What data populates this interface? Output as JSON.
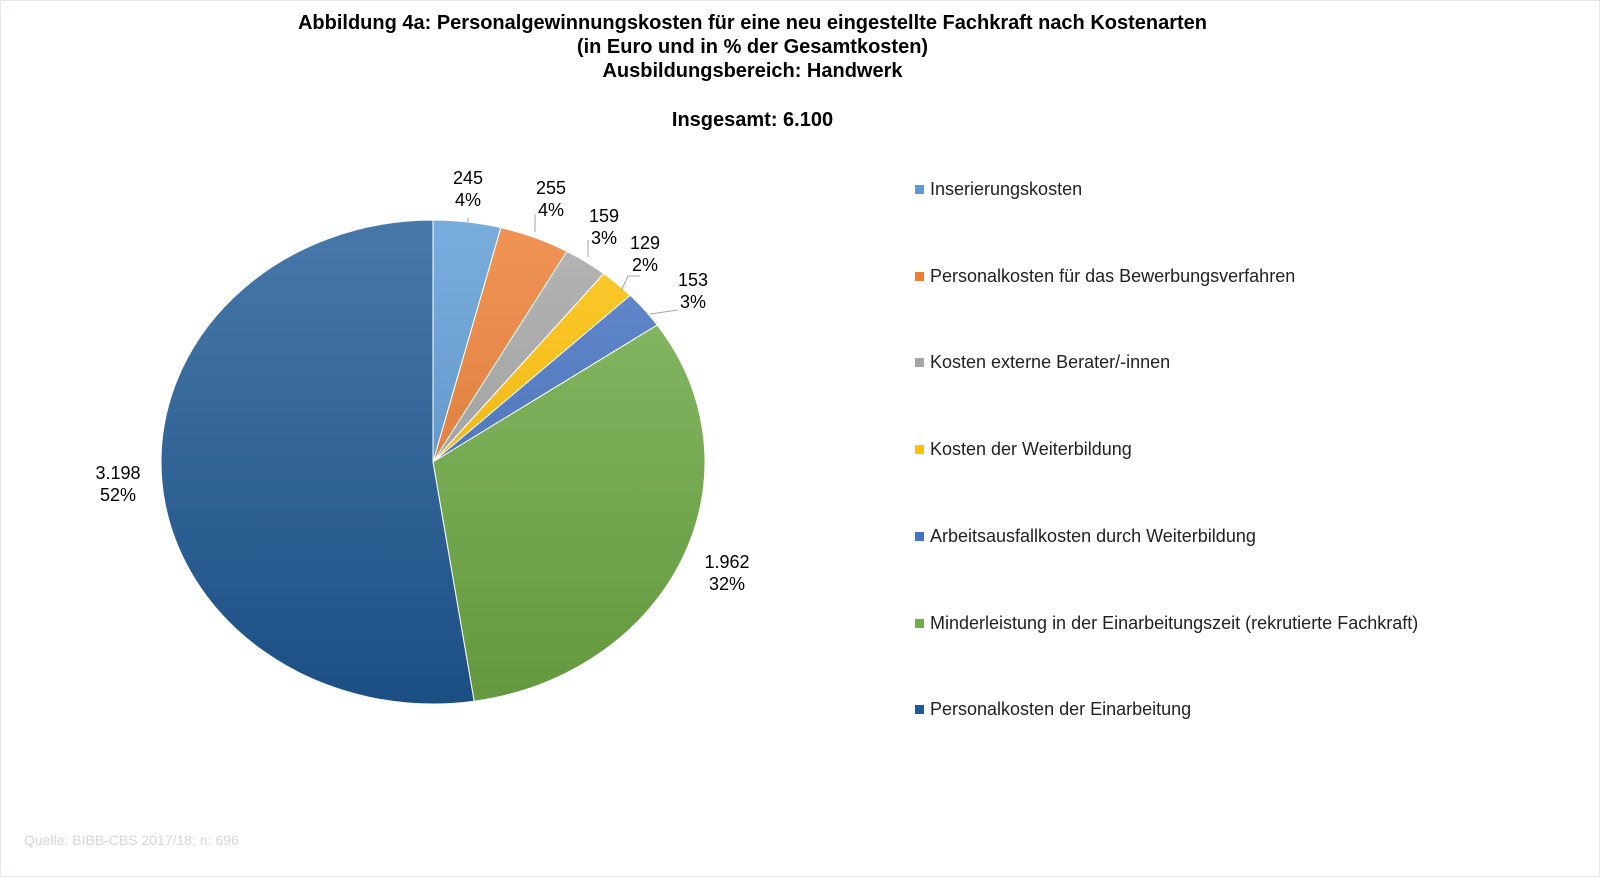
{
  "chart_data": {
    "type": "pie",
    "title": [
      "Abbildung 4a: Personalgewinnungskosten für eine neu eingestellte Fachkraft nach Kostenarten",
      "(in Euro und in % der Gesamtkosten)",
      "Ausbildungsbereich: Handwerk"
    ],
    "subtitle": "Insgesamt: 6.100",
    "legend_position": "right",
    "slices": [
      {
        "name": "Inserierungskosten",
        "value": 245,
        "value_label": "245",
        "percent_label": "4%",
        "color": "#5b9bd5"
      },
      {
        "name": "Personalkosten für das Bewerbungsverfahren",
        "value": 255,
        "value_label": "255",
        "percent_label": "4%",
        "color": "#ed7d31"
      },
      {
        "name": "Kosten externe Berater/-innen",
        "value": 159,
        "value_label": "159",
        "percent_label": "3%",
        "color": "#a5a5a5"
      },
      {
        "name": "Kosten der Weiterbildung",
        "value": 129,
        "value_label": "129",
        "percent_label": "2%",
        "color": "#ffc000"
      },
      {
        "name": "Arbeitsausfallkosten durch Weiterbildung",
        "value": 153,
        "value_label": "153",
        "percent_label": "3%",
        "color": "#4472c4"
      },
      {
        "name": "Minderleistung in der Einarbeitungszeit (rekrutierte Fachkraft)",
        "value": 1962,
        "value_label": "1.962",
        "percent_label": "32%",
        "color": "#70ad47"
      },
      {
        "name": "Personalkosten der Einarbeitung",
        "value": 3198,
        "value_label": "3.198",
        "percent_label": "52%",
        "color": "#1f5a96"
      }
    ],
    "source": "Quelle: BIBB-CBS 2017/18; n: 696"
  }
}
